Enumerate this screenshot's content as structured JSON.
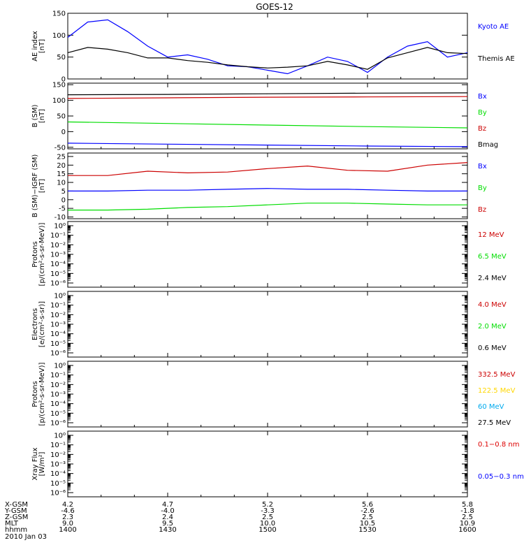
{
  "title": "GOES-12",
  "colors": {
    "blue": "#0000ff",
    "black": "#000000",
    "red": "#cc0000",
    "green": "#00dd00",
    "yellow": "#ffd700",
    "cyan": "#00aaee",
    "xray_red": "#dd0000",
    "xray_blue": "#0000ff"
  },
  "chart_data": [
    {
      "type": "line",
      "ylabel": [
        "AE index",
        "[nT]"
      ],
      "yticks": [
        "150",
        "100",
        "50",
        "0"
      ],
      "ylim": [
        0,
        150
      ],
      "tick_values": [
        150,
        100,
        50,
        0
      ],
      "legend": [
        "Kyoto AE",
        "Themis AE"
      ],
      "legend_colors": [
        "blue",
        "black"
      ],
      "x": [
        0,
        0.05,
        0.1,
        0.15,
        0.2,
        0.25,
        0.3,
        0.35,
        0.4,
        0.45,
        0.5,
        0.55,
        0.6,
        0.65,
        0.7,
        0.75,
        0.8,
        0.85,
        0.9,
        0.95,
        1.0
      ],
      "series": [
        {
          "name": "Kyoto AE",
          "color": "blue",
          "values": [
            95,
            130,
            135,
            108,
            75,
            50,
            55,
            45,
            30,
            28,
            20,
            12,
            30,
            50,
            40,
            15,
            50,
            75,
            85,
            50,
            60
          ]
        },
        {
          "name": "Themis AE",
          "color": "black",
          "values": [
            60,
            72,
            68,
            60,
            48,
            48,
            42,
            38,
            32,
            28,
            25,
            27,
            30,
            40,
            32,
            22,
            48,
            60,
            72,
            60,
            58
          ]
        }
      ]
    },
    {
      "type": "line",
      "ylabel": [
        "B (SM)",
        "[nT]"
      ],
      "yticks": [
        "150",
        "100",
        "50",
        "0",
        "-50"
      ],
      "ylim": [
        -55,
        155
      ],
      "tick_values": [
        150,
        100,
        50,
        0,
        -50
      ],
      "legend": [
        "Bx",
        "By",
        "Bz",
        "Bmag"
      ],
      "legend_colors": [
        "blue",
        "green",
        "red",
        "black"
      ],
      "x": [
        0,
        0.25,
        0.5,
        0.75,
        1.0
      ],
      "series": [
        {
          "name": "Bmag",
          "color": "black",
          "values": [
            118,
            119,
            121,
            123,
            124
          ]
        },
        {
          "name": "Bz",
          "color": "red",
          "values": [
            106,
            108,
            110,
            111,
            112
          ]
        },
        {
          "name": "By",
          "color": "green",
          "values": [
            31,
            26,
            21,
            16,
            12
          ]
        },
        {
          "name": "Bx",
          "color": "blue",
          "values": [
            -37,
            -40,
            -43,
            -46,
            -48
          ]
        }
      ]
    },
    {
      "type": "line",
      "ylabel": [
        "B (SM)−IGRF (SM)",
        "[nT]"
      ],
      "yticks": [
        "25",
        "20",
        "15",
        "10",
        "5",
        "0",
        "-5",
        "-10"
      ],
      "ylim": [
        -11,
        27
      ],
      "tick_values": [
        25,
        20,
        15,
        10,
        5,
        0,
        -5,
        -10
      ],
      "legend": [
        "Bx",
        "By",
        "Bz"
      ],
      "legend_colors": [
        "blue",
        "green",
        "red"
      ],
      "x": [
        0,
        0.1,
        0.2,
        0.3,
        0.4,
        0.5,
        0.6,
        0.7,
        0.8,
        0.9,
        1.0
      ],
      "series": [
        {
          "name": "Bz",
          "color": "red",
          "values": [
            14,
            14,
            16.5,
            15.5,
            16,
            18,
            19.5,
            17,
            16.5,
            20,
            21.5
          ]
        },
        {
          "name": "Bx",
          "color": "blue",
          "values": [
            5,
            5,
            5.5,
            5.5,
            6,
            6.5,
            6,
            6,
            5.5,
            5,
            5
          ]
        },
        {
          "name": "By",
          "color": "green",
          "values": [
            -6,
            -6,
            -5.5,
            -4.5,
            -4,
            -3,
            -2,
            -2,
            -2.5,
            -3,
            -3
          ]
        }
      ]
    },
    {
      "type": "line",
      "ylabel": [
        "Protons",
        "[p/(cm²-s-sr-MeV)]"
      ],
      "yticks": [
        "10⁰",
        "10⁻¹",
        "10⁻²",
        "10⁻³",
        "10⁻⁴",
        "10⁻⁵",
        "10⁻⁶"
      ],
      "log": true,
      "legend": [
        "12 MeV",
        "6.5 MeV",
        "2.4 MeV"
      ],
      "legend_colors": [
        "red",
        "green",
        "black"
      ],
      "series": []
    },
    {
      "type": "line",
      "ylabel": [
        "Electrons",
        "[e/(cm²-s-sr)]"
      ],
      "yticks": [
        "10⁰",
        "10⁻¹",
        "10⁻²",
        "10⁻³",
        "10⁻⁴",
        "10⁻⁵",
        "10⁻⁶"
      ],
      "log": true,
      "legend": [
        "4.0 MeV",
        "2.0 MeV",
        "0.6 MeV"
      ],
      "legend_colors": [
        "red",
        "green",
        "black"
      ],
      "series": []
    },
    {
      "type": "line",
      "ylabel": [
        "Protons",
        "[p/(cm²-s-sr-MeV)]"
      ],
      "yticks": [
        "10⁰",
        "10⁻¹",
        "10⁻²",
        "10⁻³",
        "10⁻⁴",
        "10⁻⁵",
        "10⁻⁶"
      ],
      "log": true,
      "legend": [
        "332.5 MeV",
        "122.5 MeV",
        "60 MeV",
        "27.5 MeV"
      ],
      "legend_colors": [
        "red",
        "yellow",
        "cyan",
        "black"
      ],
      "series": []
    },
    {
      "type": "line",
      "ylabel": [
        "Xray Flux",
        "[W/m²]"
      ],
      "yticks": [
        "10⁰",
        "10⁻¹",
        "10⁻²",
        "10⁻³",
        "10⁻⁴",
        "10⁻⁵",
        "10⁻⁶"
      ],
      "log": true,
      "legend": [
        "0.1−0.8 nm",
        "0.05−0.3 nm"
      ],
      "legend_colors": [
        "xray_red",
        "xray_blue"
      ],
      "series": []
    }
  ],
  "footer": {
    "labels": [
      "X-GSM",
      "Y-GSM",
      "Z-GSM",
      "MLT",
      "hhmm",
      "2010 Jan 03"
    ],
    "columns": [
      [
        "4.2",
        "-4.6",
        "2.3",
        "9.0",
        "1400"
      ],
      [
        "4.7",
        "-4.0",
        "2.4",
        "9.5",
        "1430"
      ],
      [
        "5.2",
        "-3.3",
        "2.5",
        "10.0",
        "1500"
      ],
      [
        "5.6",
        "-2.6",
        "2.5",
        "10.5",
        "1530"
      ],
      [
        "5.8",
        "-1.8",
        "2.5",
        "10.9",
        "1600"
      ]
    ]
  }
}
